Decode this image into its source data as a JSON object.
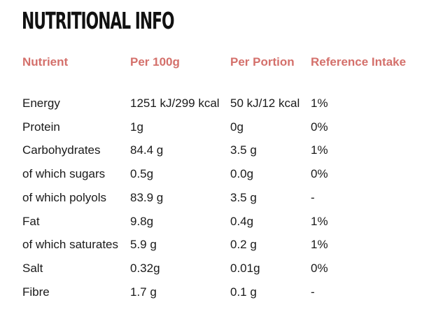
{
  "title": "NUTRITIONAL INFO",
  "headers": {
    "nutrient": "Nutrient",
    "per100g": "Per 100g",
    "perPortion": "Per Portion",
    "referenceIntake": "Reference Intake"
  },
  "rows": [
    {
      "nutrient": "Energy",
      "per100g": "1251 kJ/299 kcal",
      "perPortion": "50 kJ/12 kcal",
      "ri": "1%"
    },
    {
      "nutrient": "Protein",
      "per100g": "1g",
      "perPortion": "0g",
      "ri": "0%"
    },
    {
      "nutrient": "Carbohydrates",
      "per100g": "84.4 g",
      "perPortion": "3.5 g",
      "ri": "1%"
    },
    {
      "nutrient": "of which sugars",
      "per100g": "0.5g",
      "perPortion": "0.0g",
      "ri": "0%"
    },
    {
      "nutrient": "of which polyols",
      "per100g": "83.9 g",
      "perPortion": "3.5 g",
      "ri": "-"
    },
    {
      "nutrient": "Fat",
      "per100g": "9.8g",
      "perPortion": "0.4g",
      "ri": "1%"
    },
    {
      "nutrient": "of which saturates",
      "per100g": "5.9 g",
      "perPortion": "0.2 g",
      "ri": "1%"
    },
    {
      "nutrient": "Salt",
      "per100g": "0.32g",
      "perPortion": "0.01g",
      "ri": "0%"
    },
    {
      "nutrient": "Fibre",
      "per100g": "1.7 g",
      "perPortion": "0.1 g",
      "ri": "-"
    }
  ],
  "colors": {
    "accent": "#d4706b",
    "text": "#1a1a1a"
  }
}
